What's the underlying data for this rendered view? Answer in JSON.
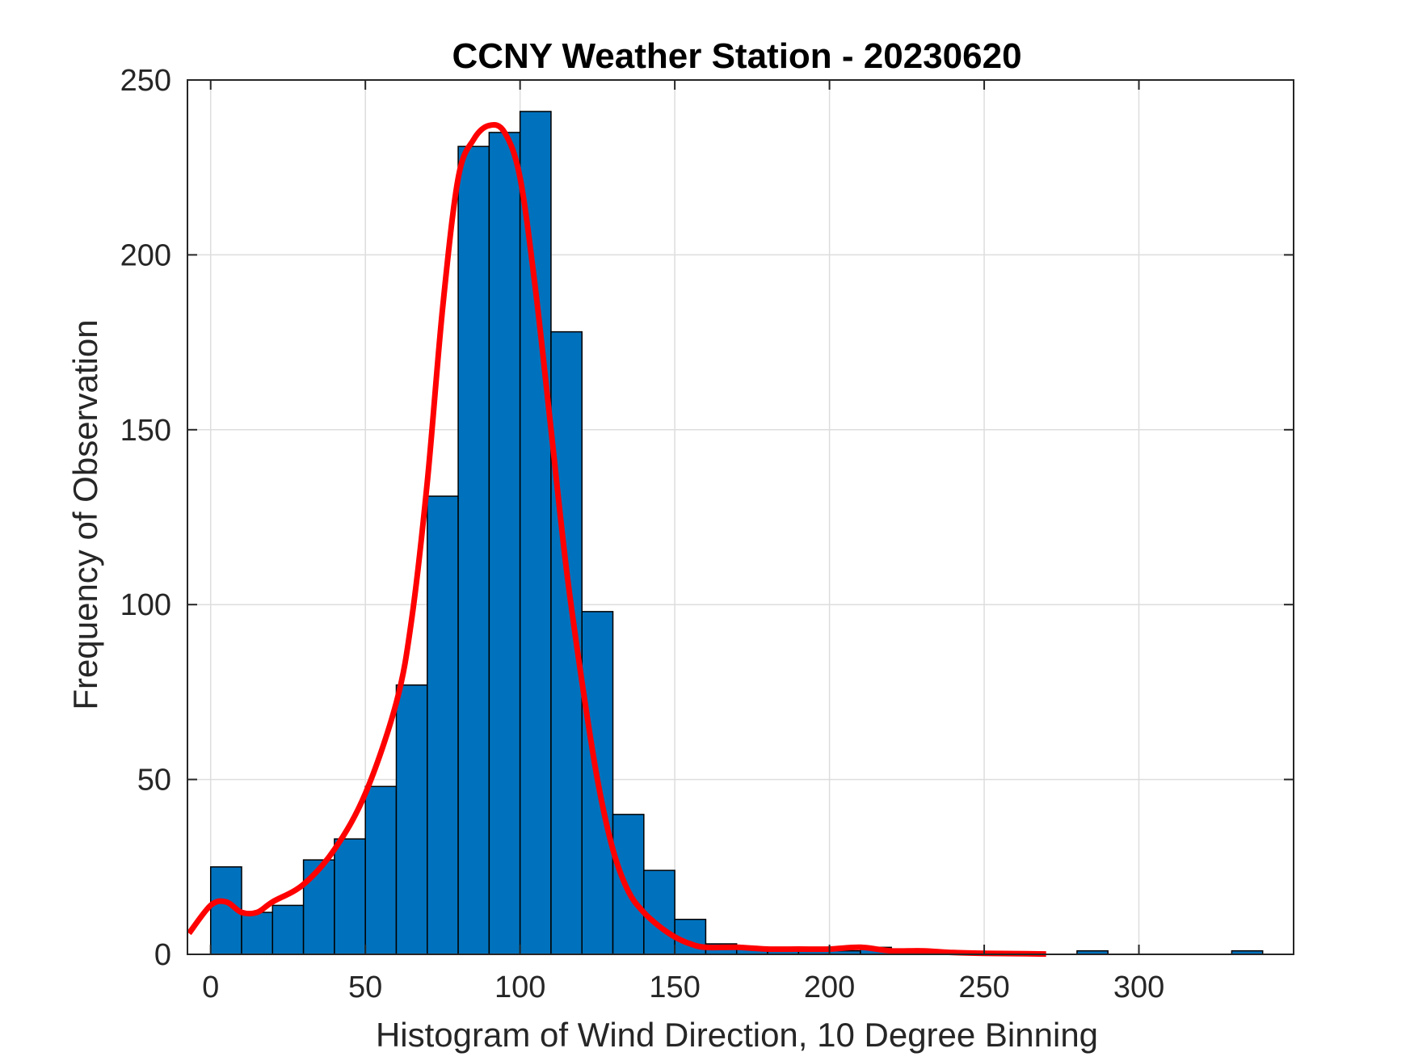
{
  "chart_data": {
    "type": "bar",
    "title": "CCNY Weather Station - 20230620",
    "xlabel": "Histogram of Wind Direction, 10 Degree Binning",
    "ylabel": "Frequency of Observation",
    "xlim": [
      -7.5,
      350
    ],
    "ylim": [
      0,
      250
    ],
    "xticks": [
      0,
      50,
      100,
      150,
      200,
      250,
      300
    ],
    "yticks": [
      0,
      50,
      100,
      150,
      200,
      250
    ],
    "grid": true,
    "bin_width": 10,
    "bins": [
      {
        "x0": 0,
        "x1": 10,
        "count": 25
      },
      {
        "x0": 10,
        "x1": 20,
        "count": 12
      },
      {
        "x0": 20,
        "x1": 30,
        "count": 14
      },
      {
        "x0": 30,
        "x1": 40,
        "count": 27
      },
      {
        "x0": 40,
        "x1": 50,
        "count": 33
      },
      {
        "x0": 50,
        "x1": 60,
        "count": 48
      },
      {
        "x0": 60,
        "x1": 70,
        "count": 77
      },
      {
        "x0": 70,
        "x1": 80,
        "count": 131
      },
      {
        "x0": 80,
        "x1": 90,
        "count": 231
      },
      {
        "x0": 90,
        "x1": 100,
        "count": 235
      },
      {
        "x0": 100,
        "x1": 110,
        "count": 241
      },
      {
        "x0": 110,
        "x1": 120,
        "count": 178
      },
      {
        "x0": 120,
        "x1": 130,
        "count": 98
      },
      {
        "x0": 130,
        "x1": 140,
        "count": 40
      },
      {
        "x0": 140,
        "x1": 150,
        "count": 24
      },
      {
        "x0": 150,
        "x1": 160,
        "count": 10
      },
      {
        "x0": 160,
        "x1": 170,
        "count": 3
      },
      {
        "x0": 170,
        "x1": 180,
        "count": 2
      },
      {
        "x0": 180,
        "x1": 190,
        "count": 2
      },
      {
        "x0": 190,
        "x1": 200,
        "count": 2
      },
      {
        "x0": 200,
        "x1": 210,
        "count": 1
      },
      {
        "x0": 210,
        "x1": 220,
        "count": 2
      },
      {
        "x0": 220,
        "x1": 230,
        "count": 0
      },
      {
        "x0": 230,
        "x1": 240,
        "count": 1
      },
      {
        "x0": 240,
        "x1": 250,
        "count": 0
      },
      {
        "x0": 250,
        "x1": 260,
        "count": 0
      },
      {
        "x0": 260,
        "x1": 270,
        "count": 0
      },
      {
        "x0": 270,
        "x1": 280,
        "count": 0
      },
      {
        "x0": 280,
        "x1": 290,
        "count": 1
      },
      {
        "x0": 290,
        "x1": 300,
        "count": 0
      },
      {
        "x0": 300,
        "x1": 310,
        "count": 0
      },
      {
        "x0": 310,
        "x1": 320,
        "count": 0
      },
      {
        "x0": 320,
        "x1": 330,
        "count": 0
      },
      {
        "x0": 330,
        "x1": 340,
        "count": 1
      }
    ],
    "fit_curve": {
      "type": "line",
      "x": [
        -7,
        0,
        5,
        10,
        15,
        20,
        30,
        40,
        50,
        60,
        65,
        70,
        75,
        80,
        85,
        90,
        95,
        100,
        105,
        110,
        115,
        120,
        125,
        130,
        135,
        140,
        145,
        150,
        155,
        160,
        170,
        180,
        190,
        200,
        210,
        220,
        230,
        240,
        250,
        260,
        270
      ],
      "y": [
        6,
        14,
        15,
        12,
        12,
        15,
        20,
        30,
        46,
        72,
        96,
        135,
        185,
        222,
        233,
        237,
        235,
        222,
        190,
        150,
        110,
        78,
        50,
        30,
        18,
        12,
        8,
        5,
        3,
        2,
        2,
        1.5,
        1.5,
        1.5,
        2,
        1,
        1,
        0.5,
        0.3,
        0.2,
        0.1
      ]
    },
    "colors": {
      "bar_fill": "#0072bd",
      "bar_edge": "#000000",
      "curve": "#ff0000",
      "grid": "#dddddd",
      "axes": "#262626"
    }
  }
}
